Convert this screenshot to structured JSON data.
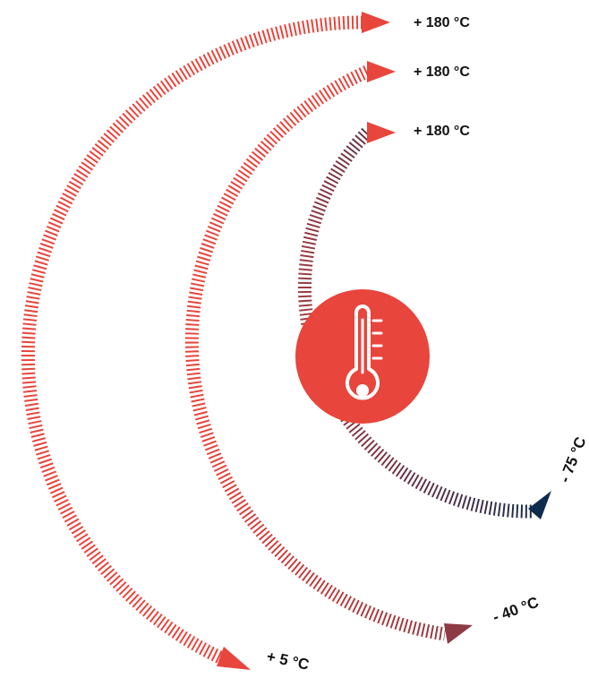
{
  "colors": {
    "hot": "#e8453c",
    "warm_end": "#8c3a44",
    "cold_end": "#0f2c4f",
    "icon_fill": "#e8453c",
    "icon_stroke": "#ffffff",
    "label": "#111111"
  },
  "center_icon": "thermometer-icon",
  "arcs": [
    {
      "id": "outer",
      "start_label": "+ 180 °C",
      "end_label": "+ 5 °C",
      "end_color": "hot"
    },
    {
      "id": "middle",
      "start_label": "+ 180 °C",
      "end_label": "- 40 °C",
      "end_color": "warm_end"
    },
    {
      "id": "inner",
      "start_label": "+ 180 °C",
      "end_label": "- 75 °C",
      "end_color": "cold_end"
    }
  ]
}
